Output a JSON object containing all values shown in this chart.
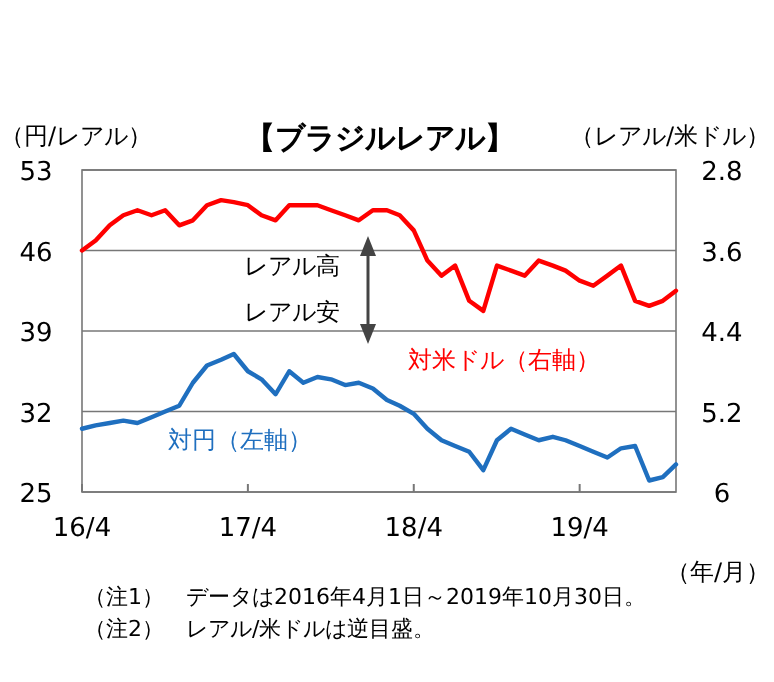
{
  "chart_data": {
    "type": "line",
    "title": "【ブラジルレアル】",
    "ylabel": "（円/レアル）",
    "y2label": "（レアル/米ドル）",
    "xlabel": "（年/月）",
    "x": [
      "2016-04-01",
      "2016-05-01",
      "2016-06-01",
      "2016-07-01",
      "2016-08-01",
      "2016-09-01",
      "2016-10-01",
      "2016-11-01",
      "2016-12-01",
      "2017-01-01",
      "2017-02-01",
      "2017-03-01",
      "2017-04-01",
      "2017-05-01",
      "2017-06-01",
      "2017-07-01",
      "2017-08-01",
      "2017-09-01",
      "2017-10-01",
      "2017-11-01",
      "2017-12-01",
      "2018-01-01",
      "2018-02-01",
      "2018-03-01",
      "2018-04-01",
      "2018-05-01",
      "2018-06-01",
      "2018-07-01",
      "2018-08-01",
      "2018-09-01",
      "2018-10-01",
      "2018-11-01",
      "2018-12-01",
      "2019-01-01",
      "2019-02-01",
      "2019-03-01",
      "2019-04-01",
      "2019-05-01",
      "2019-06-01",
      "2019-07-01",
      "2019-08-01",
      "2019-09-01",
      "2019-10-01",
      "2019-10-30"
    ],
    "series": [
      {
        "name": "対円（左軸）",
        "color": "#1f6fbf",
        "axis": "y",
        "values": [
          30.5,
          30.8,
          31.0,
          31.2,
          31.0,
          31.5,
          32.0,
          32.5,
          34.5,
          36.0,
          36.5,
          37.0,
          35.5,
          34.8,
          33.5,
          35.5,
          34.5,
          35.0,
          34.8,
          34.3,
          34.5,
          34.0,
          33.0,
          32.5,
          31.8,
          30.5,
          29.5,
          29.0,
          28.5,
          26.9,
          29.5,
          30.5,
          30.0,
          29.5,
          29.8,
          29.5,
          29.0,
          28.5,
          28.0,
          28.8,
          29.0,
          26.0,
          26.3,
          27.4
        ]
      },
      {
        "name": "対米ドル（右軸）",
        "color": "#ff0000",
        "axis": "y2",
        "values": [
          3.6,
          3.5,
          3.35,
          3.25,
          3.2,
          3.25,
          3.2,
          3.35,
          3.3,
          3.15,
          3.1,
          3.12,
          3.15,
          3.25,
          3.3,
          3.15,
          3.15,
          3.15,
          3.2,
          3.25,
          3.3,
          3.2,
          3.2,
          3.25,
          3.4,
          3.7,
          3.85,
          3.75,
          4.1,
          4.2,
          3.75,
          3.8,
          3.85,
          3.7,
          3.75,
          3.8,
          3.9,
          3.95,
          3.85,
          3.75,
          4.1,
          4.15,
          4.1,
          4.0
        ]
      }
    ],
    "xlim": [
      "2016-04-01",
      "2019-10-30"
    ],
    "xticks": [
      {
        "value": "2016-04-01",
        "label": "16/4"
      },
      {
        "value": "2017-04-01",
        "label": "17/4"
      },
      {
        "value": "2018-04-01",
        "label": "18/4"
      },
      {
        "value": "2019-04-01",
        "label": "19/4"
      }
    ],
    "ylim": [
      25,
      53
    ],
    "yticks": [
      25,
      32,
      39,
      46,
      53
    ],
    "y2lim": [
      6,
      2.8
    ],
    "y2ticks": [
      {
        "value": 6,
        "label": "6"
      },
      {
        "value": 5.2,
        "label": "5.2"
      },
      {
        "value": 4.4,
        "label": "4.4"
      },
      {
        "value": 3.6,
        "label": "3.6"
      },
      {
        "value": 2.8,
        "label": "2.8"
      }
    ],
    "grid": "y",
    "annotations": [
      "レアル高",
      "レアル安",
      "（注1）　データは2016年4月1日～2019年10月30日。",
      "（注2）　レアル/米ドルは逆目盛。"
    ]
  }
}
